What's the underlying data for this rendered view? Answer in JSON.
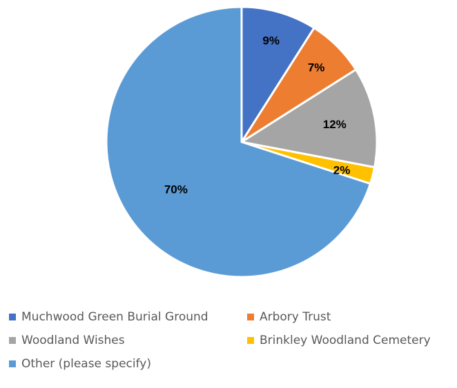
{
  "chart_data": {
    "type": "pie",
    "title": "",
    "start_angle_deg": 0,
    "direction": "clockwise",
    "categories": [
      "Muchwood Green Burial Ground",
      "Arbory Trust",
      "Woodland Wishes",
      "Brinkley Woodland Cemetery",
      "Other (please specify)"
    ],
    "values": [
      9,
      7,
      12,
      2,
      70
    ],
    "labels": [
      "9%",
      "7%",
      "12%",
      "2%",
      "70%"
    ],
    "colors": [
      "#4472C4",
      "#ED7D31",
      "#A5A5A5",
      "#FFC000",
      "#5B9BD5"
    ],
    "legend_position": "bottom"
  },
  "legend": {
    "items": [
      {
        "label": "Muchwood Green Burial Ground",
        "color": "#4472C4"
      },
      {
        "label": "Arbory Trust",
        "color": "#ED7D31"
      },
      {
        "label": "Woodland Wishes",
        "color": "#A5A5A5"
      },
      {
        "label": "Brinkley Woodland Cemetery",
        "color": "#FFC000"
      },
      {
        "label": "Other (please specify)",
        "color": "#5B9BD5"
      }
    ]
  }
}
